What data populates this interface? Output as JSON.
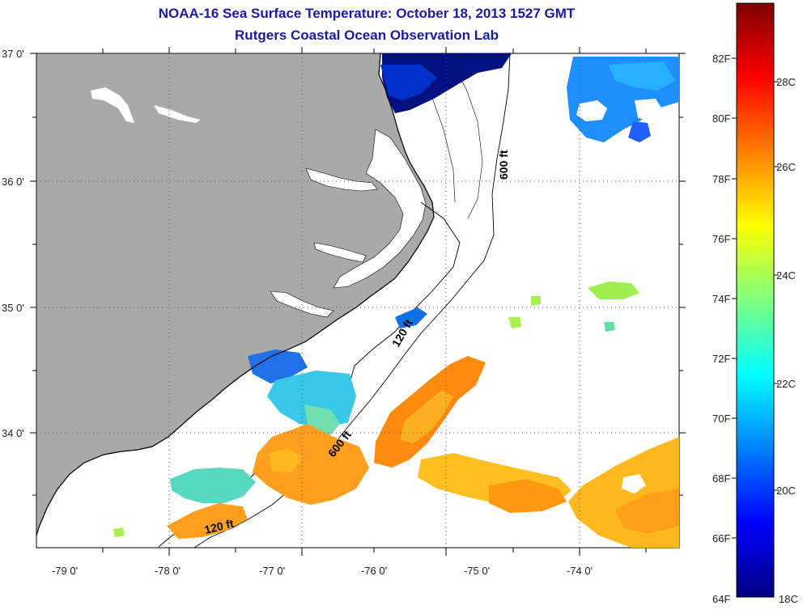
{
  "title": {
    "line1": "NOAA-16 Sea Surface Temperature:  October 18, 2013 1527 GMT",
    "line2": "Rutgers Coastal Ocean Observation Lab"
  },
  "map": {
    "longitude_labels": [
      "-79 0'",
      "-78 0'",
      "-77 0'",
      "-76 0'",
      "-75 0'",
      "-74 0'"
    ],
    "latitude_labels": [
      "37 0'",
      "36 0'",
      "35 0'",
      "34 0'"
    ],
    "isobath_labels": [
      "600 ft",
      "120 ft",
      "600 ft",
      "120 ft"
    ],
    "colors": {
      "land": "#a9a9a9",
      "ocean_no_data": "#ffffff",
      "grid": "#555555",
      "coastline": "#000000"
    }
  },
  "colorbar": {
    "fahrenheit_labels": [
      "82F",
      "80F",
      "78F",
      "76F",
      "74F",
      "72F",
      "70F",
      "68F",
      "66F",
      "64F"
    ],
    "celsius_labels": [
      "28C",
      "26C",
      "24C",
      "22C",
      "20C",
      "18C"
    ],
    "colors": [
      "#00007f",
      "#0000ff",
      "#007fff",
      "#00ffff",
      "#7fff7f",
      "#ffff00",
      "#ff7f00",
      "#ff0000",
      "#7f0000"
    ]
  }
}
